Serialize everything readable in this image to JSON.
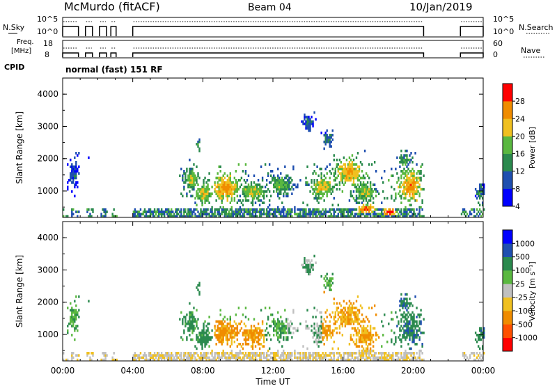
{
  "header": {
    "station": "McMurdo (fitACF)",
    "beam": "Beam 04",
    "date": "10/Jan/2019"
  },
  "top_panels": {
    "nsky_label": "N.Sky",
    "nsky_ticks": [
      "10^5",
      "10^0"
    ],
    "nsearch_ticks": [
      "10^5",
      "10^0"
    ],
    "nsearch_label": "N.Search",
    "freq_label_1": "Freq.",
    "freq_label_2": "[MHz]",
    "freq_ticks": [
      "18",
      "8"
    ],
    "nave_ticks": [
      "60",
      "0"
    ],
    "nave_label": "Nave",
    "cpid_label": "CPID",
    "cpid_value": "normal (fast) 151 RF"
  },
  "chart_data": [
    {
      "type": "heatmap",
      "name": "power",
      "ylabel": "Slant Range [km]",
      "y_ticks": [
        "4000",
        "3000",
        "2000",
        "1000"
      ],
      "y_values": [
        4000,
        3000,
        2000,
        1000
      ],
      "ylim": [
        180,
        4500
      ],
      "xlim": [
        0,
        24
      ],
      "colorbar_label": "Power [dB]",
      "colorbar_ticks": [
        "28",
        "24",
        "20",
        "16",
        "12",
        "8",
        "4"
      ],
      "colorbar_colors": [
        "#0000ff",
        "#1f4fb0",
        "#2b8a4e",
        "#5ab840",
        "#f0c020",
        "#f08c00",
        "#ff0000"
      ],
      "data_gaps_hours": [
        [
          0.9,
          1.3
        ],
        [
          1.7,
          2.1
        ],
        [
          2.5,
          2.75
        ],
        [
          3.05,
          4.0
        ],
        [
          20.6,
          22.7
        ]
      ]
    },
    {
      "type": "heatmap",
      "name": "velocity",
      "ylabel": "Slant Range [km]",
      "y_ticks": [
        "4000",
        "3000",
        "2000",
        "1000"
      ],
      "y_values": [
        4000,
        3000,
        2000,
        1000
      ],
      "ylim": [
        180,
        4500
      ],
      "xlim": [
        0,
        24
      ],
      "colorbar_label": "Velocity [m s⁻¹]",
      "colorbar_ticks": [
        "1000",
        "500",
        "100",
        "25",
        "-25",
        "-100",
        "-500",
        "-1000"
      ],
      "colorbar_colors": [
        "#ff0000",
        "#ff5000",
        "#f08c00",
        "#f0c020",
        "#c0c0c0",
        "#5ab840",
        "#2b8a4e",
        "#1f4fb0",
        "#0000ff"
      ],
      "data_gaps_hours": [
        [
          0.9,
          1.3
        ],
        [
          1.7,
          2.1
        ],
        [
          2.5,
          2.75
        ],
        [
          3.05,
          4.0
        ],
        [
          20.6,
          22.7
        ]
      ]
    }
  ],
  "x_axis": {
    "ticks": [
      "00:00",
      "04:00",
      "08:00",
      "12:00",
      "16:00",
      "20:00",
      "00:00"
    ],
    "tick_hours": [
      0,
      4,
      8,
      12,
      16,
      20,
      24
    ],
    "label": "Time UT"
  }
}
